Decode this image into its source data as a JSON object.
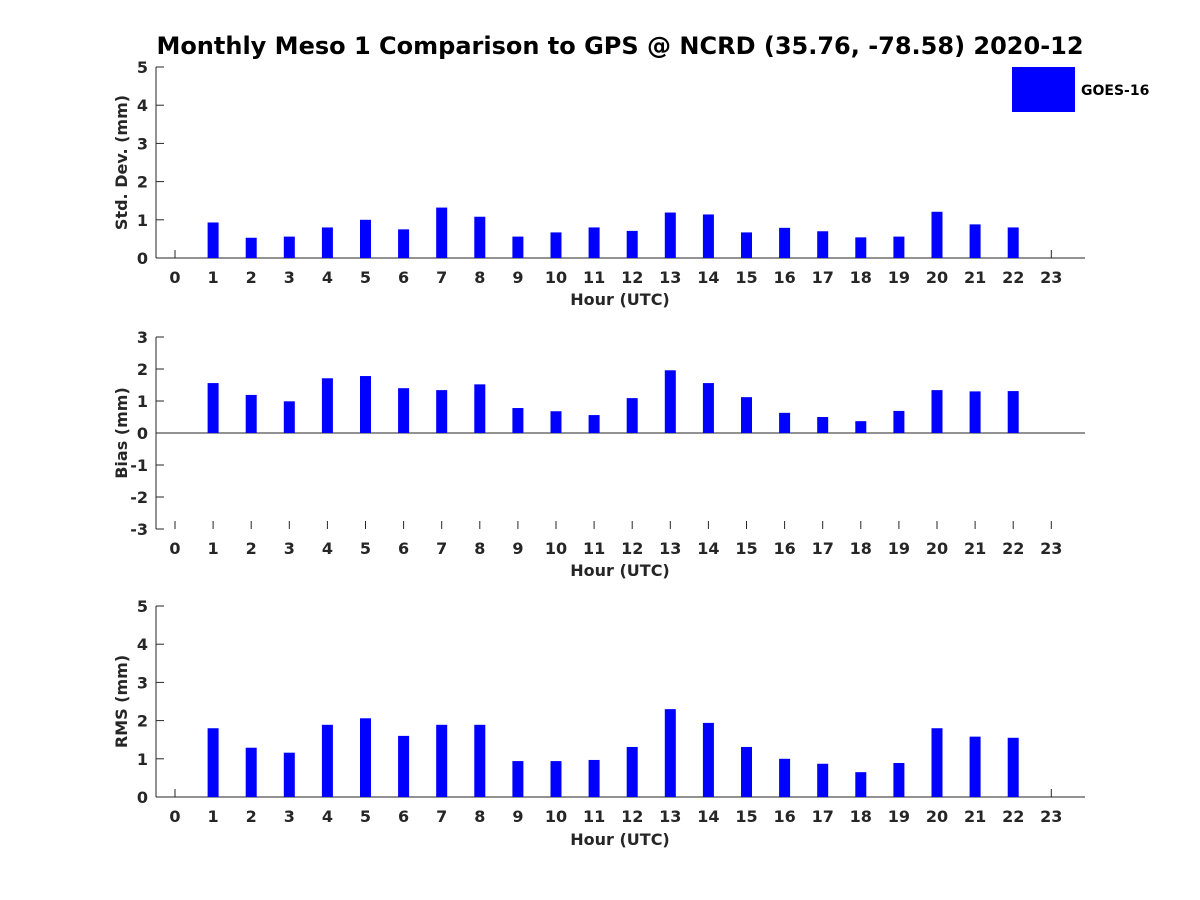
{
  "figure": {
    "title": "Monthly Meso 1 Comparison to GPS @ NCRD (35.76, -78.58) 2020-12"
  },
  "legend": {
    "entries": [
      {
        "label": "GOES-16",
        "color": "#0000ff"
      }
    ],
    "placement": "top-right"
  },
  "chart_data": [
    {
      "type": "bar",
      "title": "",
      "xlabel": "Hour (UTC)",
      "ylabel": "Std. Dev. (mm)",
      "ylim": [
        0,
        5
      ],
      "yticks": [
        "0",
        "1",
        "2",
        "3",
        "4",
        "5"
      ],
      "categories": [
        "0",
        "1",
        "2",
        "3",
        "4",
        "5",
        "6",
        "7",
        "8",
        "9",
        "10",
        "11",
        "12",
        "13",
        "14",
        "15",
        "16",
        "17",
        "18",
        "19",
        "20",
        "21",
        "22",
        "23"
      ],
      "series": [
        {
          "name": "GOES-16",
          "color": "#0000ff",
          "values": [
            null,
            0.93,
            0.53,
            0.56,
            0.8,
            1.0,
            0.75,
            1.32,
            1.08,
            0.56,
            0.67,
            0.8,
            0.71,
            1.19,
            1.14,
            0.67,
            0.79,
            0.7,
            0.54,
            0.56,
            1.21,
            0.88,
            0.8,
            null
          ]
        }
      ]
    },
    {
      "type": "bar",
      "title": "",
      "xlabel": "Hour (UTC)",
      "ylabel": "Bias (mm)",
      "ylim": [
        -3,
        3
      ],
      "yticks": [
        "-3",
        "-2",
        "-1",
        "0",
        "1",
        "2",
        "3"
      ],
      "categories": [
        "0",
        "1",
        "2",
        "3",
        "4",
        "5",
        "6",
        "7",
        "8",
        "9",
        "10",
        "11",
        "12",
        "13",
        "14",
        "15",
        "16",
        "17",
        "18",
        "19",
        "20",
        "21",
        "22",
        "23"
      ],
      "series": [
        {
          "name": "GOES-16",
          "color": "#0000ff",
          "values": [
            null,
            1.56,
            1.19,
            0.99,
            1.71,
            1.78,
            1.4,
            1.34,
            1.52,
            0.78,
            0.68,
            0.56,
            1.09,
            1.96,
            1.56,
            1.12,
            0.63,
            0.5,
            0.37,
            0.69,
            1.34,
            1.3,
            1.31,
            null
          ]
        }
      ]
    },
    {
      "type": "bar",
      "title": "",
      "xlabel": "Hour (UTC)",
      "ylabel": "RMS (mm)",
      "ylim": [
        0,
        5
      ],
      "yticks": [
        "0",
        "1",
        "2",
        "3",
        "4",
        "5"
      ],
      "categories": [
        "0",
        "1",
        "2",
        "3",
        "4",
        "5",
        "6",
        "7",
        "8",
        "9",
        "10",
        "11",
        "12",
        "13",
        "14",
        "15",
        "16",
        "17",
        "18",
        "19",
        "20",
        "21",
        "22",
        "23"
      ],
      "series": [
        {
          "name": "GOES-16",
          "color": "#0000ff",
          "values": [
            null,
            1.8,
            1.29,
            1.16,
            1.89,
            2.06,
            1.6,
            1.89,
            1.89,
            0.94,
            0.94,
            0.97,
            1.31,
            2.3,
            1.94,
            1.31,
            1.0,
            0.87,
            0.65,
            0.89,
            1.8,
            1.58,
            1.55,
            null
          ]
        }
      ]
    }
  ]
}
